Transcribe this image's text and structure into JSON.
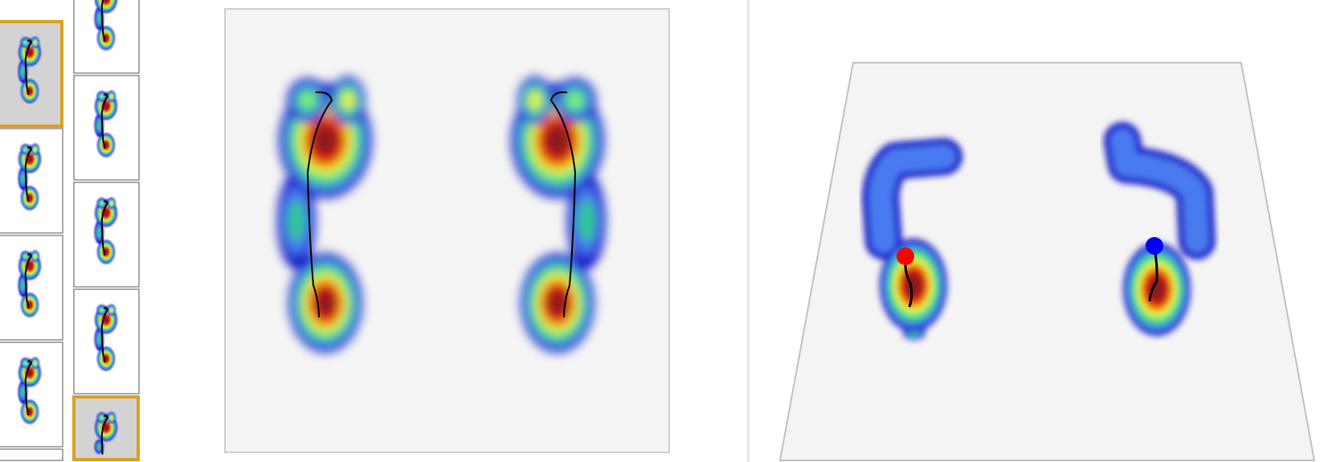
{
  "colors": {
    "panel_bg": "#f4f4f4",
    "panel_border": "#c0c0c0",
    "thumb_border": "#707070",
    "thumb_selected_bg": "#d3d3d3",
    "thumb_selected_border": "#d9a020",
    "divider": "#e2e2f4",
    "left_marker": "#ff0000",
    "right_marker": "#0000ff",
    "cop_line": "#000000",
    "heatmap_scale": [
      "#1414c8",
      "#4a7af0",
      "#2ec890",
      "#80f080",
      "#f0f020",
      "#f07010",
      "#d81010",
      "#8b1a1a"
    ]
  },
  "thumbnails": {
    "column_1": [
      {
        "selected": true
      },
      {
        "selected": false
      },
      {
        "selected": false
      },
      {
        "selected": false
      },
      {
        "selected": false
      }
    ],
    "column_2": [
      {
        "selected": false
      },
      {
        "selected": false
      },
      {
        "selected": false
      },
      {
        "selected": false
      },
      {
        "selected": true
      }
    ]
  },
  "main_view": {
    "type": "2d-pressure-map",
    "feet": [
      "left",
      "right"
    ],
    "cop_trace": true
  },
  "perspective_view": {
    "type": "3d-pressure-map",
    "markers": [
      {
        "foot": "left",
        "icon": "red-dot"
      },
      {
        "foot": "right",
        "icon": "blue-dot"
      }
    ]
  }
}
